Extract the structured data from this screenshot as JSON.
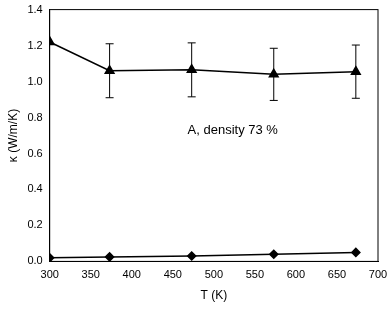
{
  "chart_data": {
    "type": "line",
    "x_label": "T (K)",
    "y_label": "κ (W/m/K)",
    "annotation": "A, density 73 %",
    "xlim": [
      300,
      700
    ],
    "xticks": [
      300,
      350,
      400,
      450,
      500,
      550,
      600,
      650,
      700
    ],
    "ylim": [
      0,
      1.4
    ],
    "yticks": [
      {
        "value": 0,
        "label": "0.0"
      },
      0.2,
      0.4,
      0.6,
      0.8,
      {
        "value": 1,
        "label": "1.0"
      },
      1.2,
      1.4
    ],
    "grid": false,
    "series": [
      {
        "color": "#000000",
        "marker": "triangle",
        "line_style": "solid",
        "x": [
          300,
          373,
          473,
          573,
          673
        ],
        "values": [
          1.22,
          1.06,
          1.065,
          1.04,
          1.055
        ],
        "errors": [
          0,
          0.15,
          0.15,
          0.145,
          0.148
        ]
      },
      {
        "color": "#000000",
        "marker": "diamond",
        "line_style": "solid",
        "x": [
          300,
          373,
          473,
          573,
          673
        ],
        "values": [
          0.02,
          0.025,
          0.03,
          0.04,
          0.05
        ]
      }
    ]
  }
}
